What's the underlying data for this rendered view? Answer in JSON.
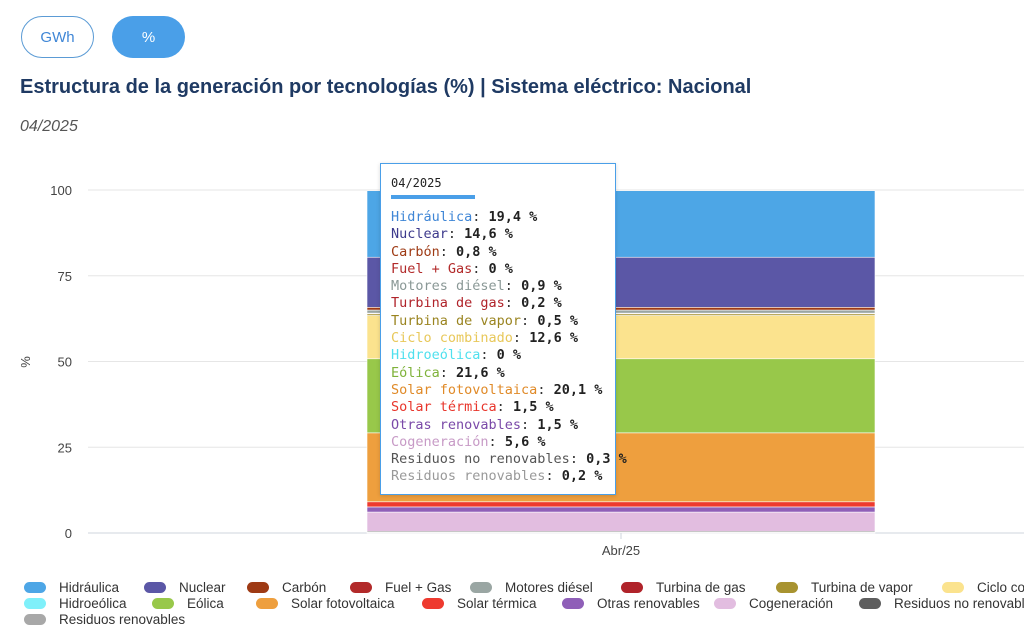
{
  "units_toggle": {
    "gwh_label": "GWh",
    "pct_label": "%"
  },
  "title": "Estructura de la generación por tecnologías (%) | Sistema eléctrico: Nacional",
  "subtitle": "04/2025",
  "chart_data": {
    "type": "bar",
    "stacked": true,
    "categories": [
      "Abr/25"
    ],
    "ylabel": "%",
    "xlabel": "",
    "ylim": [
      0,
      100
    ],
    "yticks": [
      0,
      25,
      50,
      75,
      100
    ],
    "grid": true,
    "legend_position": "bottom",
    "series": [
      {
        "name": "Hidráulica",
        "values": [
          19.4
        ],
        "color": "#4da6e6"
      },
      {
        "name": "Nuclear",
        "values": [
          14.6
        ],
        "color": "#5b57a6"
      },
      {
        "name": "Carbón",
        "values": [
          0.8
        ],
        "color": "#9e3a14"
      },
      {
        "name": "Fuel + Gas",
        "values": [
          0
        ],
        "color": "#b22a2a"
      },
      {
        "name": "Motores diésel",
        "values": [
          0.9
        ],
        "color": "#9aa6a3"
      },
      {
        "name": "Turbina de gas",
        "values": [
          0.2
        ],
        "color": "#b0232a"
      },
      {
        "name": "Turbina de vapor",
        "values": [
          0.5
        ],
        "color": "#a89330"
      },
      {
        "name": "Ciclo combinado",
        "values": [
          12.6
        ],
        "color": "#fbe38e"
      },
      {
        "name": "Hidroeólica",
        "values": [
          0
        ],
        "color": "#7ff0fa"
      },
      {
        "name": "Eólica",
        "values": [
          21.6
        ],
        "color": "#98c84a"
      },
      {
        "name": "Solar fotovoltaica",
        "values": [
          20.1
        ],
        "color": "#ee9f3e"
      },
      {
        "name": "Solar térmica",
        "values": [
          1.5
        ],
        "color": "#ee3a2f"
      },
      {
        "name": "Otras renovables",
        "values": [
          1.5
        ],
        "color": "#8f5fb8"
      },
      {
        "name": "Cogeneración",
        "values": [
          5.6
        ],
        "color": "#e2bde0"
      },
      {
        "name": "Residuos no renovables",
        "values": [
          0.3
        ],
        "color": "#5e5e5e"
      },
      {
        "name": "Residuos renovables",
        "values": [
          0.2
        ],
        "color": "#a8a8a8"
      }
    ]
  },
  "tooltip": {
    "date": "04/2025",
    "rows": [
      {
        "name": "Hidráulica",
        "value": "19,4 %",
        "color": "#3f86d6"
      },
      {
        "name": "Nuclear",
        "value": "14,6 %",
        "color": "#3d3a8c"
      },
      {
        "name": "Carbón",
        "value": "0,8 %",
        "color": "#9e3a14"
      },
      {
        "name": "Fuel + Gas",
        "value": "0 %",
        "color": "#b22a2a"
      },
      {
        "name": "Motores diésel",
        "value": "0,9 %",
        "color": "#8a9896"
      },
      {
        "name": "Turbina de gas",
        "value": "0,2 %",
        "color": "#b0232a"
      },
      {
        "name": "Turbina de vapor",
        "value": "0,5 %",
        "color": "#9a8420"
      },
      {
        "name": "Ciclo combinado",
        "value": "12,6 %",
        "color": "#e8c85a"
      },
      {
        "name": "Hidroeólica",
        "value": "0 %",
        "color": "#4fe0ee"
      },
      {
        "name": "Eólica",
        "value": "21,6 %",
        "color": "#7fb23a"
      },
      {
        "name": "Solar fotovoltaica",
        "value": "20,1 %",
        "color": "#e08a28"
      },
      {
        "name": "Solar térmica",
        "value": "1,5 %",
        "color": "#e8352b"
      },
      {
        "name": "Otras renovables",
        "value": "1,5 %",
        "color": "#7a49a8"
      },
      {
        "name": "Cogeneración",
        "value": "5,6 %",
        "color": "#c79ac6"
      },
      {
        "name": "Residuos no renovables",
        "value": "0,3 %",
        "color": "#555555"
      },
      {
        "name": "Residuos renovables",
        "value": "0,2 %",
        "color": "#999999"
      }
    ]
  },
  "legend": {
    "rows": [
      [
        {
          "label": "Hidráulica",
          "color": "#4da6e6"
        },
        {
          "label": "Nuclear",
          "color": "#5b57a6"
        },
        {
          "label": "Carbón",
          "color": "#9e3a14"
        },
        {
          "label": "Fuel + Gas",
          "color": "#b22a2a"
        },
        {
          "label": "Motores diésel",
          "color": "#9aa6a3"
        },
        {
          "label": "Turbina de gas",
          "color": "#b0232a"
        },
        {
          "label": "Turbina de vapor",
          "color": "#a89330"
        },
        {
          "label": "Ciclo combinado",
          "color": "#fbe38e"
        }
      ],
      [
        {
          "label": "Hidroeólica",
          "color": "#7ff0fa"
        },
        {
          "label": "Eólica",
          "color": "#98c84a"
        },
        {
          "label": "Solar fotovoltaica",
          "color": "#ee9f3e"
        },
        {
          "label": "Solar térmica",
          "color": "#ee3a2f"
        },
        {
          "label": "Otras renovables",
          "color": "#8f5fb8"
        },
        {
          "label": "Cogeneración",
          "color": "#e2bde0"
        },
        {
          "label": "Residuos no renovables",
          "color": "#5e5e5e"
        }
      ],
      [
        {
          "label": "Residuos renovables",
          "color": "#a8a8a8"
        }
      ]
    ]
  }
}
